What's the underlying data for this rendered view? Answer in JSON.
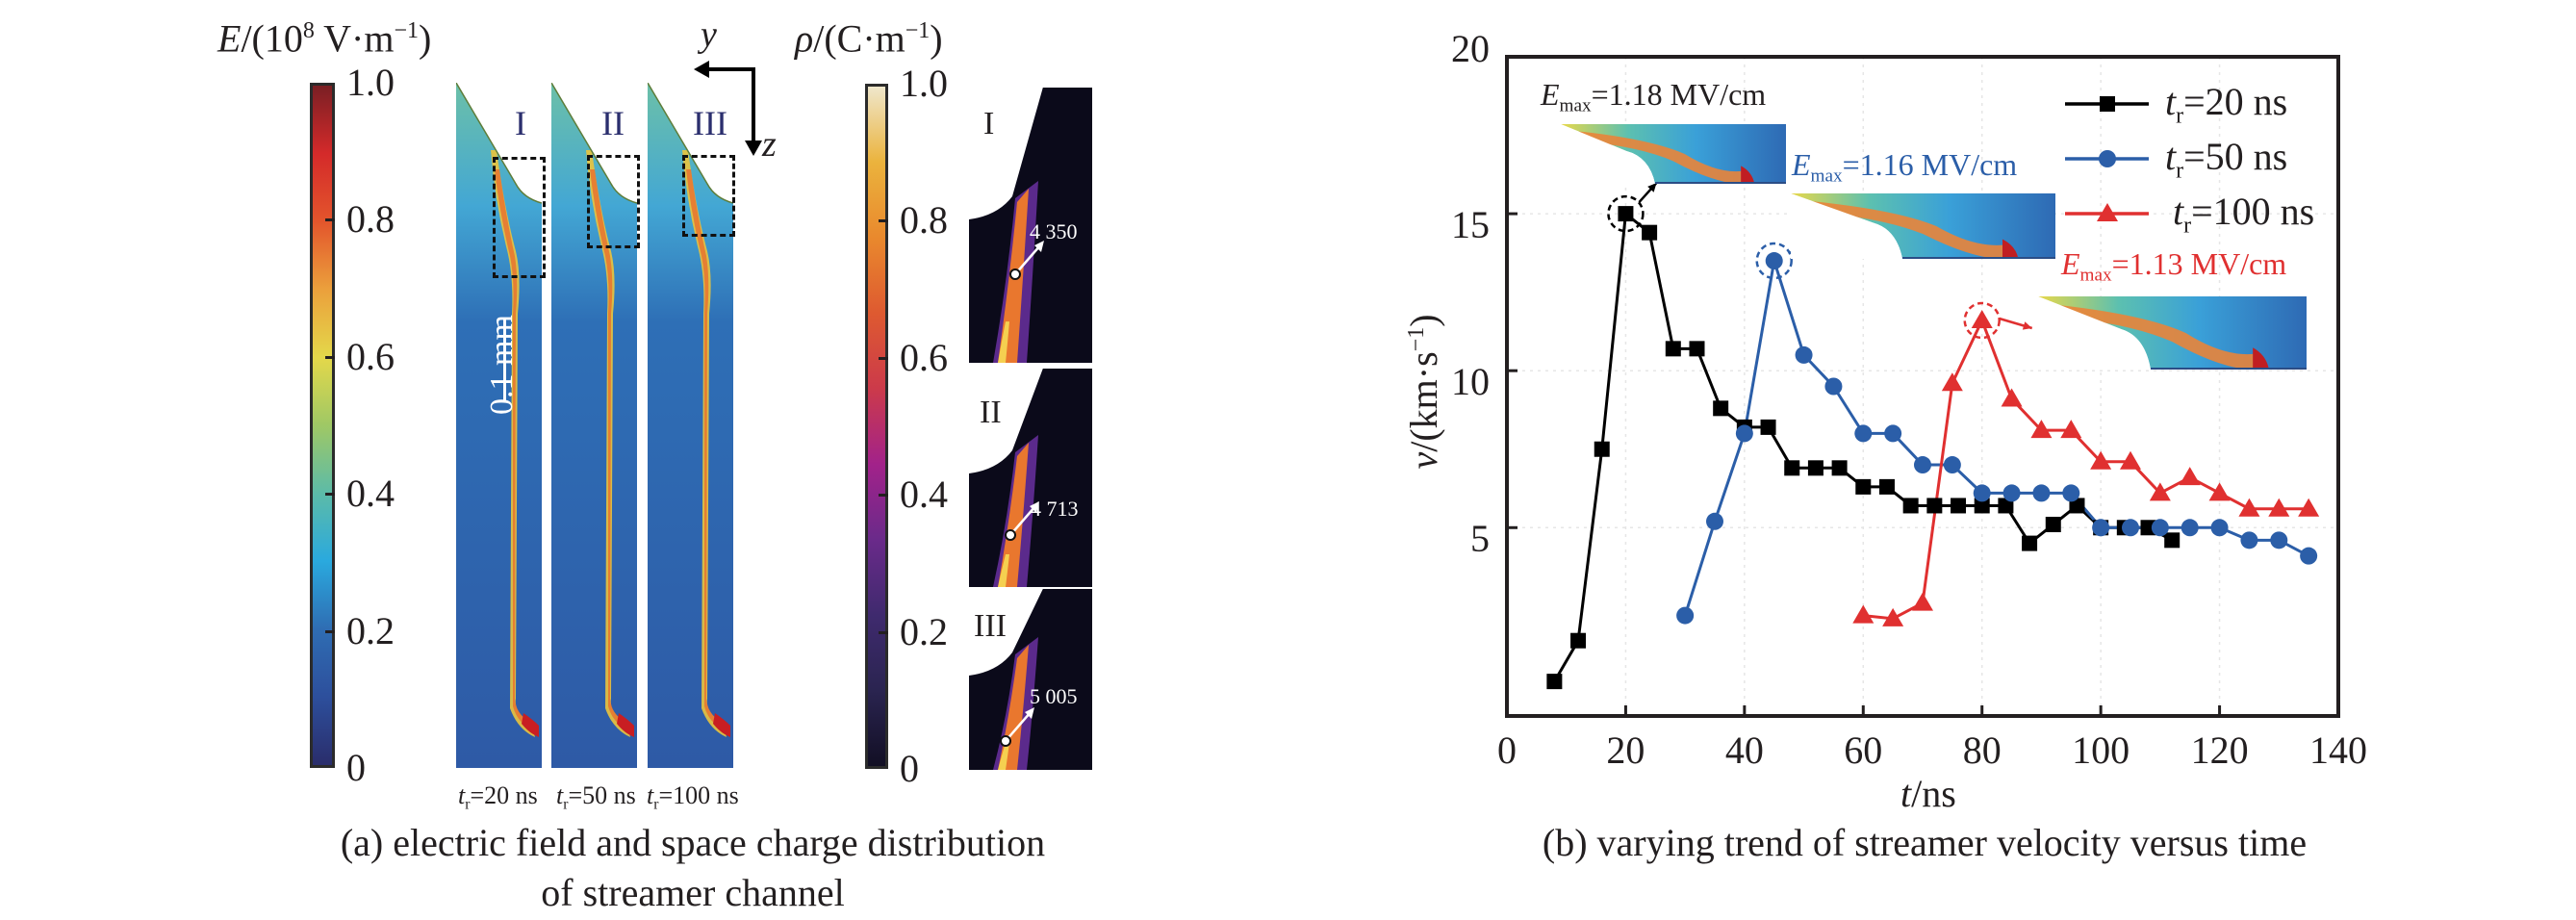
{
  "panel_a": {
    "e_colorbar": {
      "title_var": "E",
      "title_rest": "/(10",
      "title_exp": "8",
      "title_unit": " V·m",
      "title_unit_exp": "−1",
      "title_close": ")",
      "ticks": [
        "1.0",
        "0.8",
        "0.6",
        "0.4",
        "0.2",
        "0"
      ],
      "colors": [
        "#2a2d6b",
        "#2d4f9c",
        "#2f6db3",
        "#2aa9de",
        "#5cbba8",
        "#9fc865",
        "#e4d84a",
        "#eba03c",
        "#e3552c",
        "#d42a2a",
        "#7a1f24"
      ]
    },
    "rho_colorbar": {
      "title_var": "ρ",
      "title_rest": "/(C·m",
      "title_exp": "−1",
      "title_close": ")",
      "ticks": [
        "1.0",
        "0.8",
        "0.6",
        "0.4",
        "0.2",
        "0"
      ],
      "colors": [
        "#120f24",
        "#2a2450",
        "#3f2a6e",
        "#6a2a8a",
        "#a2228a",
        "#cc3a4a",
        "#de5a30",
        "#e9892d",
        "#ebb33d",
        "#efe7cb"
      ]
    },
    "field_panels": [
      {
        "roman": "I",
        "tr_var": "t",
        "tr_sub": "r",
        "tr_value": "=20 ns"
      },
      {
        "roman": "II",
        "tr_var": "t",
        "tr_sub": "r",
        "tr_value": "=50 ns"
      },
      {
        "roman": "III",
        "tr_var": "t",
        "tr_sub": "r",
        "tr_value": "=100 ns"
      }
    ],
    "scale_bar": "0.1 mm",
    "axes": {
      "y": "y",
      "z": "z"
    },
    "insets": [
      {
        "roman": "I",
        "value": "4 350"
      },
      {
        "roman": "II",
        "value": "4 713"
      },
      {
        "roman": "III",
        "value": "5 005"
      }
    ],
    "caption_line1": "(a) electric field and space charge distribution",
    "caption_line2": "of streamer channel"
  },
  "panel_b": {
    "caption": "(b) varying trend of streamer velocity versus time",
    "emax_labels": [
      {
        "var": "E",
        "sub": "max",
        "value": "=1.18 MV/cm",
        "color": "#231f20"
      },
      {
        "var": "E",
        "sub": "max",
        "value": "=1.16 MV/cm",
        "color": "#2b5ea8"
      },
      {
        "var": "E",
        "sub": "max",
        "value": "=1.13 MV/cm",
        "color": "#e03030"
      }
    ]
  },
  "chart_data": {
    "type": "line",
    "title": "",
    "xlabel_var": "t",
    "xlabel_unit": "/ns",
    "ylabel_var": "v",
    "ylabel_unit": "/(km·s",
    "ylabel_exp": "−1",
    "ylabel_close": ")",
    "xlim": [
      0,
      140
    ],
    "ylim": [
      -1,
      20
    ],
    "xticks": [
      0,
      20,
      40,
      60,
      80,
      100,
      120,
      140
    ],
    "yticks": [
      5,
      10,
      15,
      20
    ],
    "grid": "dotted-light",
    "legend_position": "top-right",
    "series": [
      {
        "name": "t_r=20 ns",
        "legend_var": "t",
        "legend_sub": "r",
        "legend_value": "=20 ns",
        "color": "#000000",
        "marker": "square",
        "x": [
          8,
          12,
          16,
          20,
          24,
          28,
          32,
          36,
          40,
          44,
          48,
          52,
          56,
          60,
          64,
          68,
          72,
          76,
          80,
          84,
          88,
          92,
          96,
          100,
          104,
          108,
          112
        ],
        "y": [
          0.1,
          1.4,
          7.5,
          15.0,
          14.4,
          10.7,
          10.7,
          8.8,
          8.2,
          8.2,
          6.9,
          6.9,
          6.9,
          6.3,
          6.3,
          5.7,
          5.7,
          5.7,
          5.7,
          5.7,
          4.5,
          5.1,
          5.7,
          5.0,
          5.0,
          5.0,
          4.6
        ],
        "highlight_x": 20
      },
      {
        "name": "t_r=50 ns",
        "legend_var": "t",
        "legend_sub": "r",
        "legend_value": "=50 ns",
        "color": "#2b5ea8",
        "marker": "circle",
        "x": [
          30,
          35,
          40,
          45,
          50,
          55,
          60,
          65,
          70,
          75,
          80,
          85,
          90,
          95,
          100,
          105,
          110,
          115,
          120,
          125,
          130,
          135
        ],
        "y": [
          2.2,
          5.2,
          8.0,
          13.5,
          10.5,
          9.5,
          8.0,
          8.0,
          7.0,
          7.0,
          6.1,
          6.1,
          6.1,
          6.1,
          5.0,
          5.0,
          5.0,
          5.0,
          5.0,
          4.6,
          4.6,
          4.1
        ],
        "highlight_x": 45
      },
      {
        "name": "t_r=100 ns",
        "legend_var": "t",
        "legend_sub": "r",
        "legend_value": "=100 ns",
        "color": "#e03030",
        "marker": "triangle",
        "x": [
          60,
          65,
          70,
          75,
          80,
          85,
          90,
          95,
          100,
          105,
          110,
          115,
          120,
          125,
          130,
          135
        ],
        "y": [
          2.2,
          2.1,
          2.6,
          9.6,
          11.6,
          9.1,
          8.1,
          8.1,
          7.1,
          7.1,
          6.1,
          6.6,
          6.1,
          5.6,
          5.6,
          5.6
        ],
        "highlight_x": 80
      }
    ],
    "annotations": [
      "E_max=1.18 MV/cm",
      "E_max=1.16 MV/cm",
      "E_max=1.13 MV/cm"
    ]
  }
}
